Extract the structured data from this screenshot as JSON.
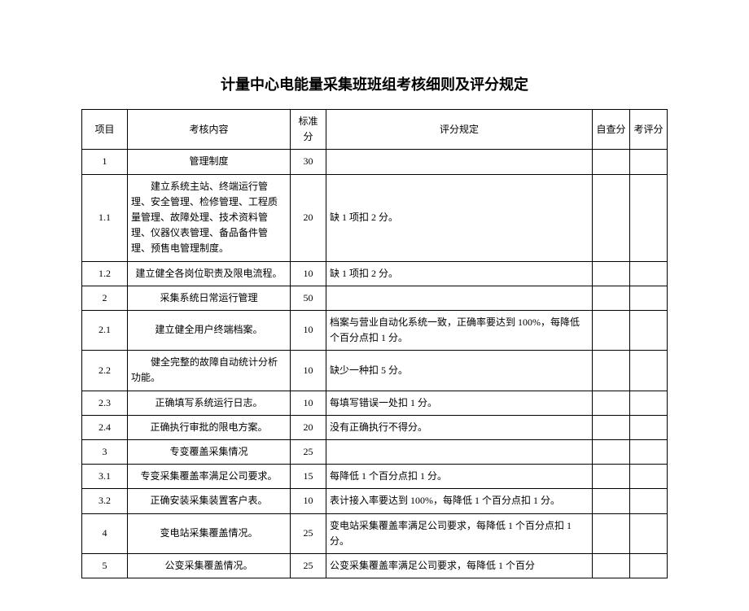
{
  "title": "计量中心电能量采集班班组考核细则及评分规定",
  "columns": {
    "item": "项目",
    "content": "考核内容",
    "score": "标准分",
    "rule": "评分规定",
    "self": "自查分",
    "eval": "考评分"
  },
  "rows": [
    {
      "item": "1",
      "content": "管理制度",
      "content_align": "center",
      "score": "30",
      "rule": "",
      "self": "",
      "eval": ""
    },
    {
      "item": "1.1",
      "content": "建立系统主站、终端运行管理、安全管理、检修管理、工程质量管理、故障处理、技术资料管理、仪器仪表管理、备品备件管理、预售电管理制度。",
      "indent": true,
      "score": "20",
      "rule": "缺 1 项扣 2 分。",
      "self": "",
      "eval": ""
    },
    {
      "item": "1.2",
      "content": "建立健全各岗位职责及限电流程。",
      "content_align": "center",
      "score": "10",
      "rule": "缺 1 项扣 2 分。",
      "self": "",
      "eval": ""
    },
    {
      "item": "2",
      "content": "采集系统日常运行管理",
      "content_align": "center",
      "score": "50",
      "rule": "",
      "self": "",
      "eval": ""
    },
    {
      "item": "2.1",
      "content": "建立健全用户终端档案。",
      "content_align": "center",
      "score": "10",
      "rule": "档案与营业自动化系统一致，正确率要达到 100%，每降低个百分点扣 1 分。",
      "self": "",
      "eval": ""
    },
    {
      "item": "2.2",
      "content": "健全完整的故障自动统计分析功能。",
      "indent": true,
      "score": "10",
      "rule": "缺少一种扣 5 分。",
      "self": "",
      "eval": ""
    },
    {
      "item": "2.3",
      "content": "正确填写系统运行日志。",
      "content_align": "center",
      "score": "10",
      "rule": "每填写错误一处扣 1 分。",
      "self": "",
      "eval": ""
    },
    {
      "item": "2.4",
      "content": "正确执行审批的限电方案。",
      "content_align": "center",
      "score": "20",
      "rule": "没有正确执行不得分。",
      "self": "",
      "eval": ""
    },
    {
      "item": "3",
      "content": "专变覆盖采集情况",
      "content_align": "center",
      "score": "25",
      "rule": "",
      "self": "",
      "eval": ""
    },
    {
      "item": "3.1",
      "content": "专变采集覆盖率满足公司要求。",
      "content_align": "center",
      "score": "15",
      "rule": "每降低 1 个百分点扣 1 分。",
      "self": "",
      "eval": ""
    },
    {
      "item": "3.2",
      "content": "正确安装采集装置客户表。",
      "content_align": "center",
      "score": "10",
      "rule": "表计接入率要达到 100%，每降低 1 个百分点扣 1 分。",
      "self": "",
      "eval": ""
    },
    {
      "item": "4",
      "content": "变电站采集覆盖情况。",
      "content_align": "center",
      "score": "25",
      "rule": "变电站采集覆盖率满足公司要求，每降低 1 个百分点扣 1 分。",
      "self": "",
      "eval": ""
    },
    {
      "item": "5",
      "content": "公变采集覆盖情况。",
      "content_align": "center",
      "score": "25",
      "rule": "公变采集覆盖率满足公司要求，每降低 1 个百分",
      "self": "",
      "eval": ""
    }
  ]
}
